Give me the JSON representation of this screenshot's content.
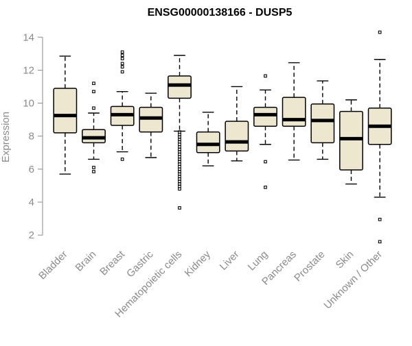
{
  "chart_data": {
    "type": "boxplot",
    "title": "ENSG00000138166 - DUSP5",
    "xlabel": "",
    "ylabel": "Expression",
    "ylim": [
      1.3,
      14.8
    ],
    "yticks": [
      2,
      4,
      6,
      8,
      10,
      12,
      14
    ],
    "grid": false,
    "legend": "none",
    "box_fill": "#ede7cf",
    "median_color": "#000000",
    "categories": [
      "Bladder",
      "Brain",
      "Breast",
      "Gastric",
      "Hematopoietic cells",
      "Kidney",
      "Liver",
      "Lung",
      "Pancreas",
      "Prostate",
      "Skin",
      "Unknown / Other"
    ],
    "boxes": [
      {
        "whisker_low": 5.7,
        "q1": 8.2,
        "median": 9.25,
        "q3": 10.9,
        "whisker_high": 12.85,
        "outliers": []
      },
      {
        "whisker_low": 6.6,
        "q1": 7.6,
        "median": 7.9,
        "q3": 8.4,
        "whisker_high": 9.4,
        "outliers": [
          5.85,
          6.1,
          9.7,
          10.7,
          11.2
        ]
      },
      {
        "whisker_low": 7.05,
        "q1": 8.65,
        "median": 9.3,
        "q3": 9.8,
        "whisker_high": 10.7,
        "outliers": [
          6.6,
          11.9,
          12.2,
          12.4,
          12.7,
          12.9,
          13.1
        ]
      },
      {
        "whisker_low": 6.7,
        "q1": 8.25,
        "median": 9.1,
        "q3": 9.75,
        "whisker_high": 10.6,
        "outliers": []
      },
      {
        "whisker_low": 8.3,
        "q1": 10.3,
        "median": 11.1,
        "q3": 11.65,
        "whisker_high": 12.9,
        "outliers": [
          3.65,
          4.8,
          4.95,
          5.1,
          5.25,
          5.4,
          5.55,
          5.7,
          5.85,
          6.0,
          6.15,
          6.3,
          6.45,
          6.6,
          6.75,
          6.9,
          7.05,
          7.2,
          7.35,
          7.5,
          7.65,
          7.8,
          7.95,
          8.1,
          8.25
        ]
      },
      {
        "whisker_low": 6.2,
        "q1": 7.0,
        "median": 7.5,
        "q3": 8.25,
        "whisker_high": 9.45,
        "outliers": []
      },
      {
        "whisker_low": 6.5,
        "q1": 7.1,
        "median": 7.65,
        "q3": 8.9,
        "whisker_high": 11.0,
        "outliers": []
      },
      {
        "whisker_low": 7.5,
        "q1": 8.6,
        "median": 9.3,
        "q3": 9.75,
        "whisker_high": 10.8,
        "outliers": [
          4.9,
          6.45,
          11.65
        ]
      },
      {
        "whisker_low": 6.55,
        "q1": 8.6,
        "median": 9.0,
        "q3": 10.35,
        "whisker_high": 12.45,
        "outliers": []
      },
      {
        "whisker_low": 6.6,
        "q1": 7.6,
        "median": 8.95,
        "q3": 9.95,
        "whisker_high": 11.35,
        "outliers": []
      },
      {
        "whisker_low": 5.1,
        "q1": 5.95,
        "median": 7.85,
        "q3": 9.5,
        "whisker_high": 10.2,
        "outliers": []
      },
      {
        "whisker_low": 4.3,
        "q1": 7.5,
        "median": 8.6,
        "q3": 9.7,
        "whisker_high": 12.65,
        "outliers": [
          1.6,
          2.95,
          14.3
        ]
      }
    ]
  }
}
